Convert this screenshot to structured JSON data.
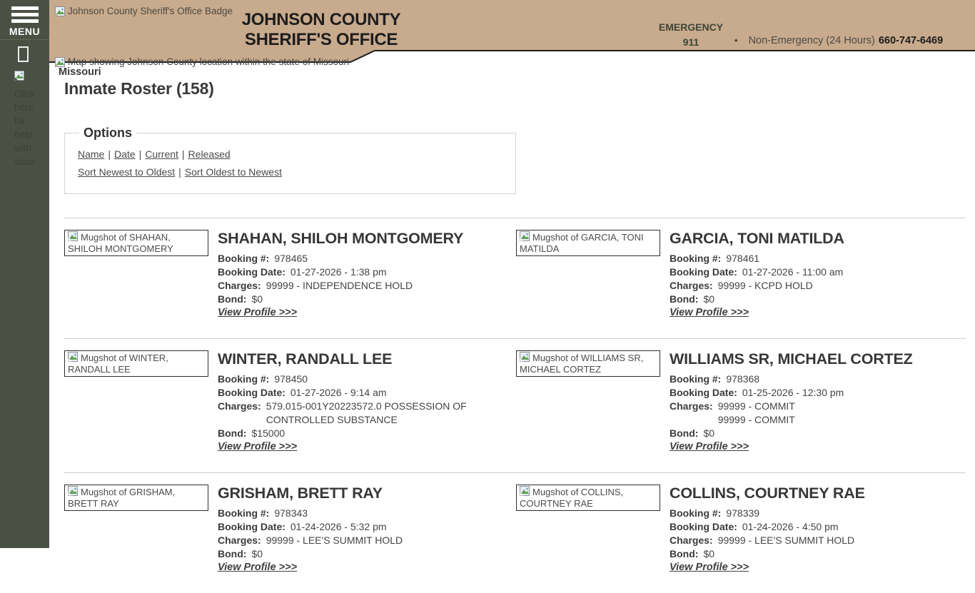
{
  "colors": {
    "header_bg": "#c8aa8d",
    "header_border": "#1e1e1e",
    "sidebar_bg": "#4a5044",
    "emergency_text": "#3c4537",
    "title_text": "#1d1d1d",
    "body_text": "#3b3b3b",
    "link_text": "#4b4b4b",
    "separator_line": "#cccccc"
  },
  "sidebar": {
    "menu_label": "MENU",
    "help_words": [
      "Click",
      "here",
      "for",
      "help",
      "with",
      "acce"
    ]
  },
  "header": {
    "badge_alt": "Johnson County Sheriff's Office Badge",
    "title_line1": "JOHNSON COUNTY",
    "title_line2": "SHERIFF'S OFFICE",
    "emergency_label": "EMERGENCY",
    "emergency_number": "911",
    "separator_bullet": "•",
    "non_emergency_label": "Non-Emergency (24 Hours)",
    "non_emergency_number": "660-747-6469",
    "map_alt": "Map showing Johnson County location within the state of Missouri",
    "map_caption": "Missouri"
  },
  "main": {
    "page_title": "Inmate Roster (158)",
    "options": {
      "legend": "Options",
      "filter_links": [
        "Name",
        "Date",
        "Current",
        "Released"
      ],
      "sort_links": [
        "Sort Newest to Oldest",
        "Sort Oldest to Newest"
      ],
      "link_separator": "|"
    },
    "field_labels": {
      "booking_no": "Booking #:",
      "booking_date": "Booking Date:",
      "charges": "Charges:",
      "bond": "Bond:",
      "view_profile": "View Profile >>>"
    },
    "inmates": [
      {
        "name": "SHAHAN, SHILOH MONTGOMERY",
        "mugshot_alt": "Mugshot of SHAHAN, SHILOH MONTGOMERY",
        "booking_no": "978465",
        "booking_date": "01-27-2026 - 1:38 pm",
        "charge_lines": [
          "99999 - INDEPENDENCE HOLD"
        ],
        "bond": "$0"
      },
      {
        "name": "GARCIA, TONI MATILDA",
        "mugshot_alt": "Mugshot of GARCIA, TONI MATILDA",
        "booking_no": "978461",
        "booking_date": "01-27-2026 - 11:00 am",
        "charge_lines": [
          "99999 - KCPD HOLD"
        ],
        "bond": "$0"
      },
      {
        "name": "WINTER, RANDALL LEE",
        "mugshot_alt": "Mugshot of WINTER, RANDALL LEE",
        "booking_no": "978450",
        "booking_date": "01-27-2026 - 9:14 am",
        "charge_lines": [
          "579.015-001Y20223572.0 POSSESSION OF",
          "CONTROLLED SUBSTANCE"
        ],
        "bond": "$15000"
      },
      {
        "name": "WILLIAMS SR, MICHAEL CORTEZ",
        "mugshot_alt": "Mugshot of WILLIAMS SR, MICHAEL CORTEZ",
        "booking_no": "978368",
        "booking_date": "01-25-2026 - 12:30 pm",
        "charge_lines": [
          "99999 - COMMIT",
          "99999 - COMMIT"
        ],
        "bond": "$0"
      },
      {
        "name": "GRISHAM, BRETT RAY",
        "mugshot_alt": "Mugshot of GRISHAM, BRETT RAY",
        "booking_no": "978343",
        "booking_date": "01-24-2026 - 5:32 pm",
        "charge_lines": [
          "99999 - LEE'S SUMMIT HOLD"
        ],
        "bond": "$0"
      },
      {
        "name": "COLLINS, COURTNEY RAE",
        "mugshot_alt": "Mugshot of COLLINS, COURTNEY RAE",
        "booking_no": "978339",
        "booking_date": "01-24-2026 - 4:50 pm",
        "charge_lines": [
          "99999 - LEE'S SUMMIT HOLD"
        ],
        "bond": "$0"
      }
    ]
  }
}
